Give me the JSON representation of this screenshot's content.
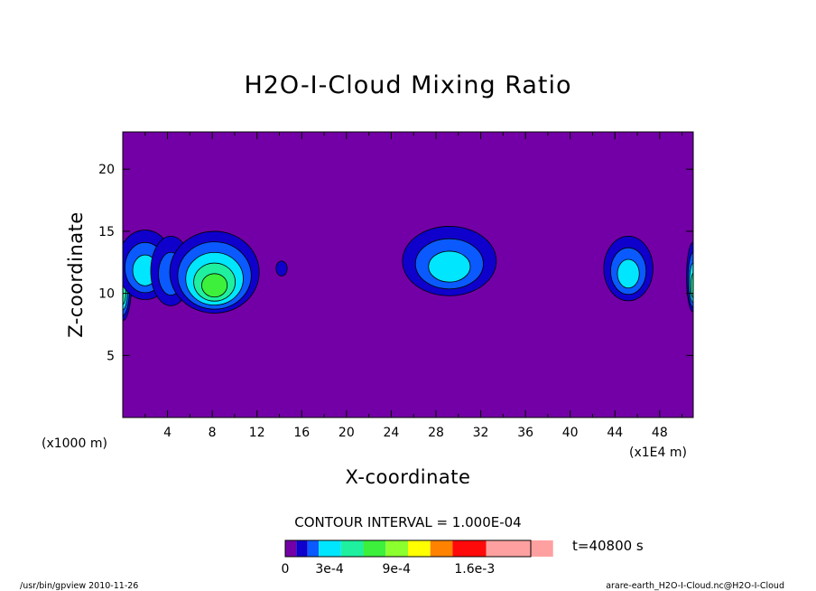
{
  "chart_data": {
    "type": "contour",
    "title": "H2O-I-Cloud Mixing Ratio",
    "xlabel": "X-coordinate",
    "ylabel": "Z-coordinate",
    "x_unit": "(x1000 m)",
    "x_scale_note": "(x1E4 m)",
    "xlim": [
      0,
      51
    ],
    "ylim": [
      0,
      23
    ],
    "x_ticks": [
      4,
      8,
      12,
      16,
      20,
      24,
      28,
      32,
      36,
      40,
      44,
      48
    ],
    "y_ticks": [
      5,
      10,
      15,
      20
    ],
    "background_color": "#7300a6",
    "contour_interval_label": "CONTOUR INTERVAL = 1.000E-04",
    "time_label": "t=40800 s",
    "colorbar": {
      "colors": [
        "#7300a6",
        "#0f00cc",
        "#0a5aff",
        "#00e6ff",
        "#1ef0a0",
        "#3cf03c",
        "#8cff2e",
        "#ffff00",
        "#ff8200",
        "#ff0a0a",
        "#ffa0a0"
      ],
      "tick_labels": [
        "0",
        "3e-4",
        "9e-4",
        "1.6e-3"
      ],
      "tick_indices": [
        0,
        3,
        9,
        16
      ],
      "total_bins": 22
    },
    "cloud_cells": [
      {
        "x": 0.0,
        "z": 11.0,
        "rx": 0.8,
        "rz": 3.2,
        "peak_level": 4
      },
      {
        "x": 2.0,
        "z": 12.3,
        "rx": 2.5,
        "rz": 2.8,
        "peak_level": 3
      },
      {
        "x": 4.3,
        "z": 11.8,
        "rx": 1.8,
        "rz": 2.8,
        "peak_level": 2
      },
      {
        "x": 8.2,
        "z": 11.7,
        "rx": 4.0,
        "rz": 3.3,
        "peak_level": 5
      },
      {
        "x": 14.2,
        "z": 12.0,
        "rx": 0.5,
        "rz": 0.6,
        "peak_level": 1
      },
      {
        "x": 29.2,
        "z": 12.6,
        "rx": 4.2,
        "rz": 2.8,
        "peak_level": 3
      },
      {
        "x": 45.2,
        "z": 12.0,
        "rx": 2.2,
        "rz": 2.6,
        "peak_level": 3
      },
      {
        "x": 51.0,
        "z": 11.3,
        "rx": 0.6,
        "rz": 2.8,
        "peak_level": 4
      }
    ],
    "grid": false
  },
  "footer": {
    "left": "/usr/bin/gpview   2010-11-26",
    "right": "arare-earth_H2O-I-Cloud.nc@H2O-I-Cloud"
  }
}
